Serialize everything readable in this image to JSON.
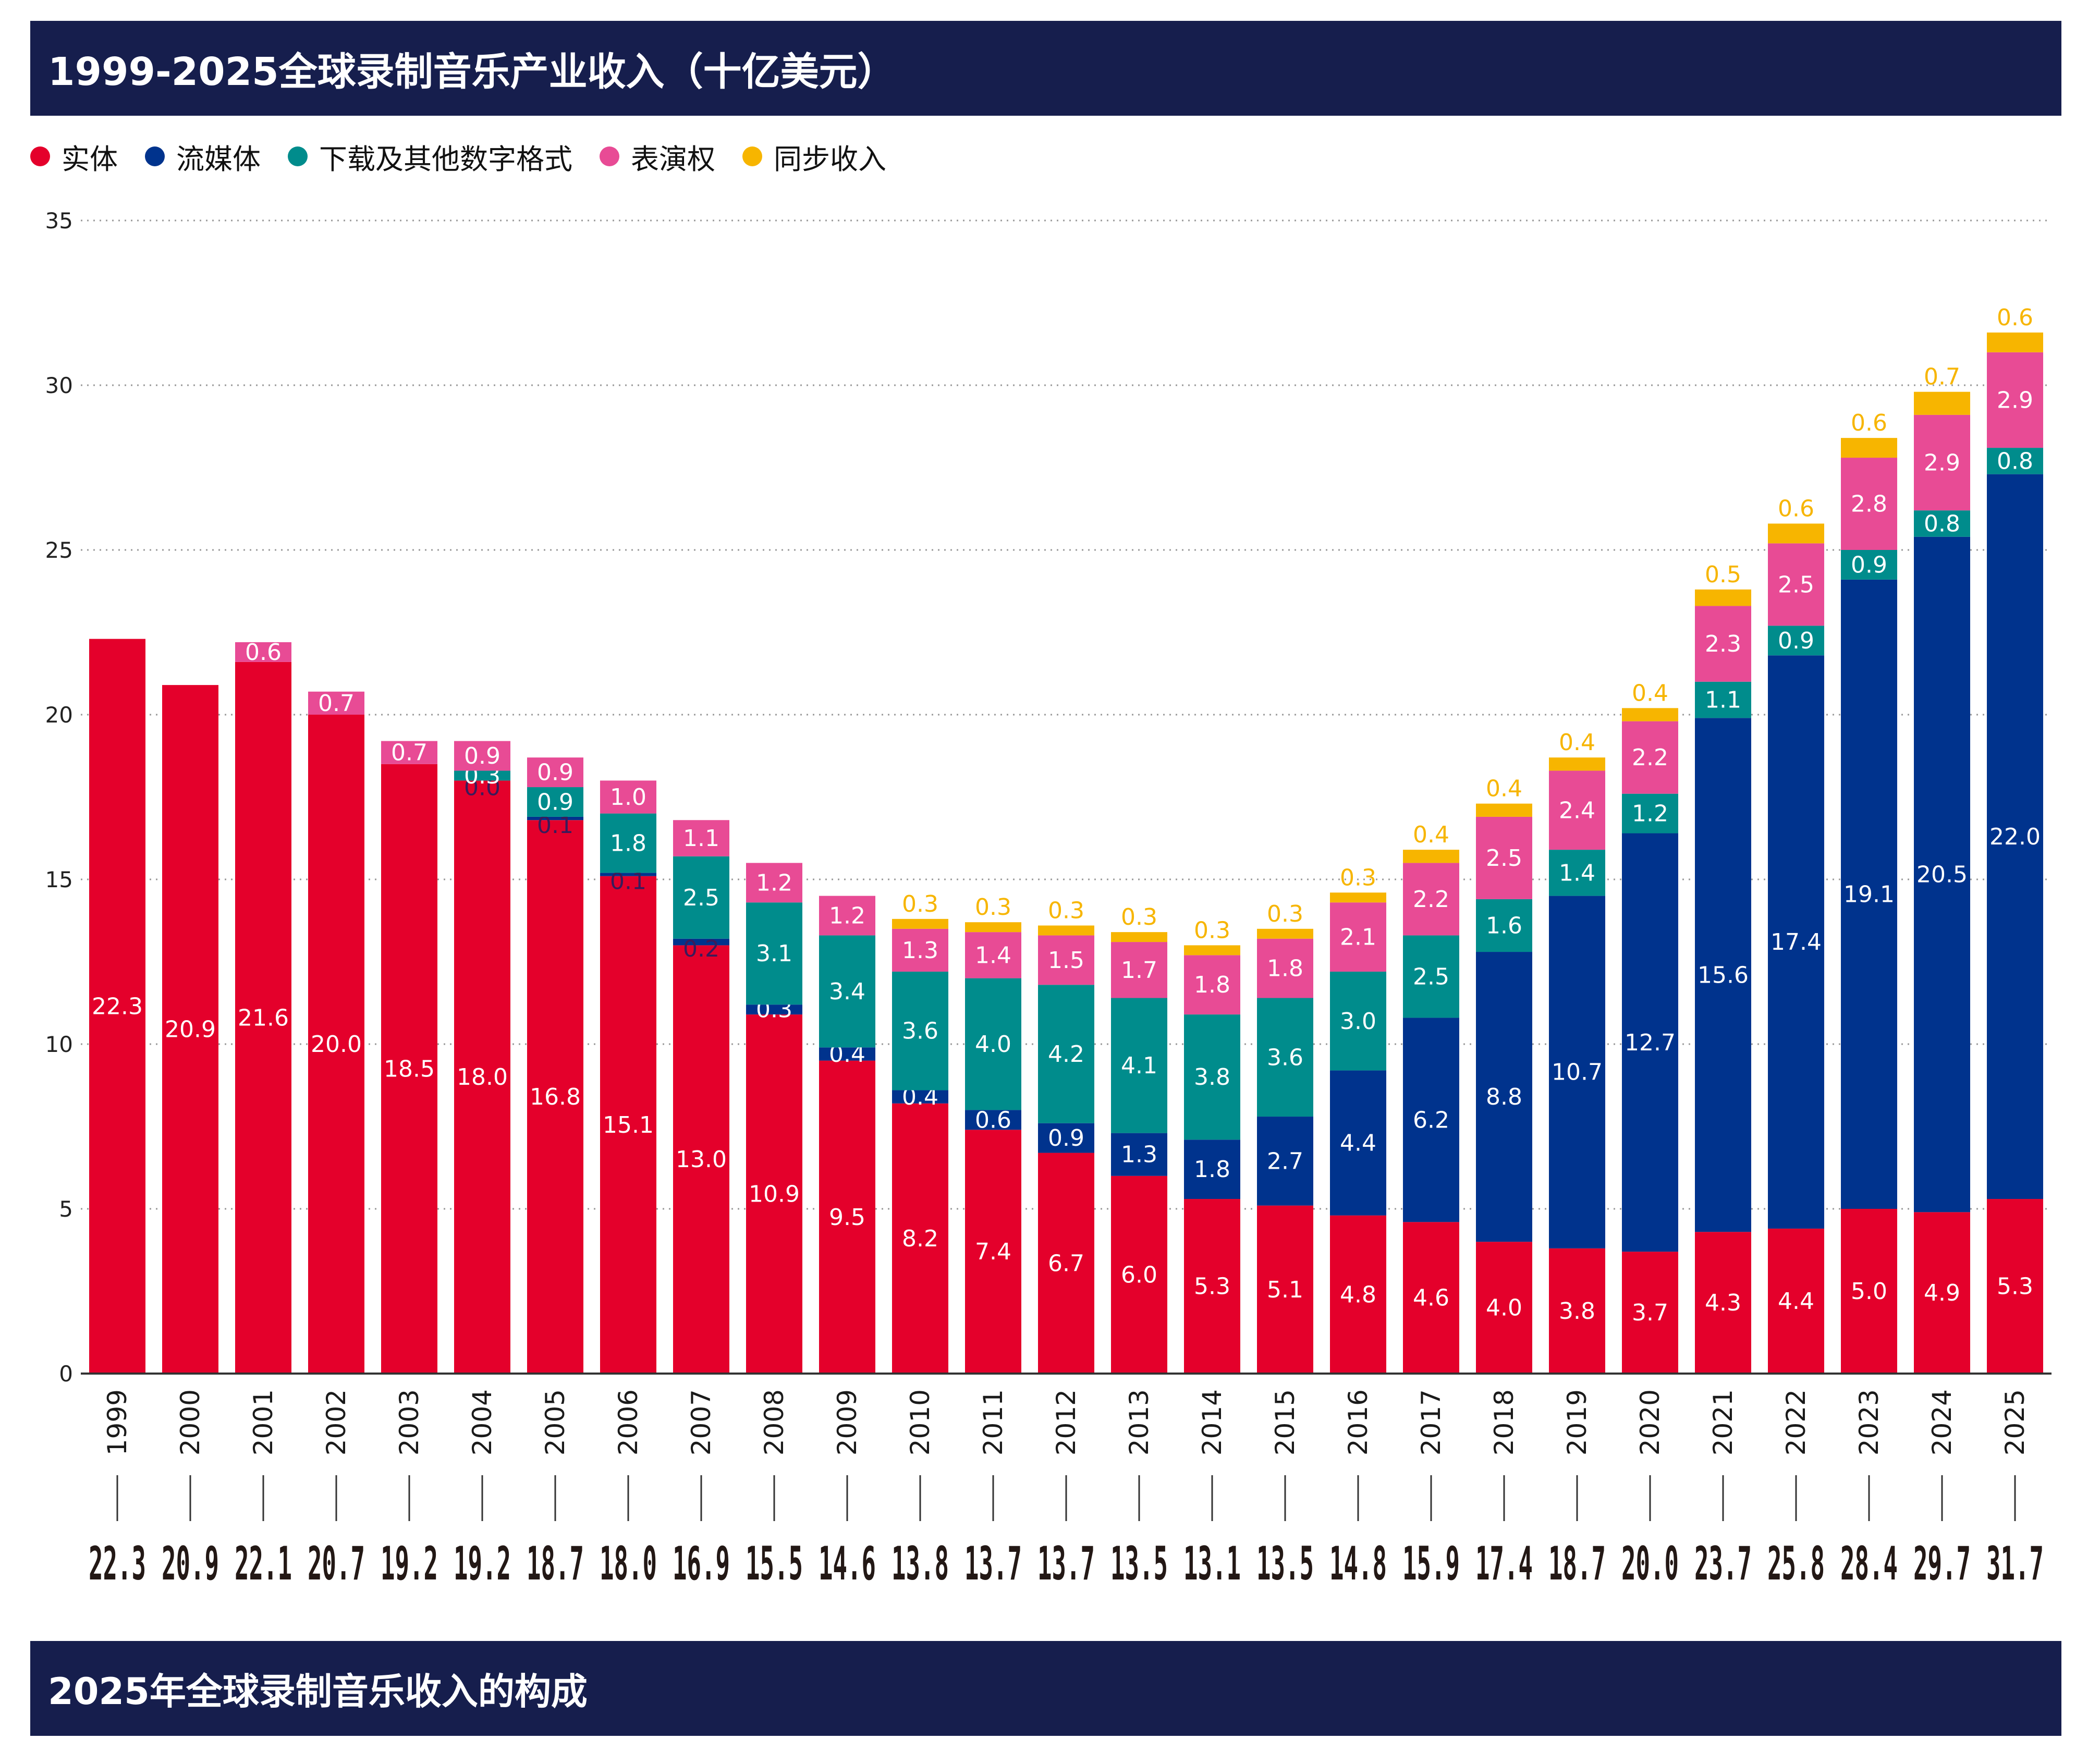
{
  "title": "1999-2025全球录制音乐产业收入（十亿美元）",
  "bottom_title": "2025年全球录制音乐收入的构成",
  "legend": [
    {
      "label": "实体",
      "color": "#e4002b"
    },
    {
      "label": "流媒体",
      "color": "#00338d"
    },
    {
      "label": "下载及其他数字格式",
      "color": "#008c8c"
    },
    {
      "label": "表演权",
      "color": "#e84b95"
    },
    {
      "label": "同步收入",
      "color": "#f7b500"
    }
  ],
  "chart_data": {
    "type": "bar",
    "stacked": true,
    "title": "1999-2025全球录制音乐产业收入（十亿美元）",
    "ylim": [
      0,
      35
    ],
    "yticks": [
      "0",
      "5",
      "10",
      "15",
      "20",
      "25",
      "30",
      "35"
    ],
    "categories": [
      "1999",
      "2000",
      "2001",
      "2002",
      "2003",
      "2004",
      "2005",
      "2006",
      "2007",
      "2008",
      "2009",
      "2010",
      "2011",
      "2012",
      "2013",
      "2014",
      "2015",
      "2016",
      "2017",
      "2018",
      "2019",
      "2020",
      "2021",
      "2022",
      "2023",
      "2024",
      "2025"
    ],
    "series": [
      {
        "name": "实体",
        "color": "#e4002b",
        "label_color": "#ffffff",
        "values": [
          22.3,
          20.9,
          21.6,
          20.0,
          18.5,
          18.0,
          16.8,
          15.1,
          13.0,
          10.9,
          9.5,
          8.2,
          7.4,
          6.7,
          6.0,
          5.3,
          5.1,
          4.8,
          4.6,
          4.0,
          3.8,
          3.7,
          4.3,
          4.4,
          5.0,
          4.9,
          5.3
        ],
        "labels": [
          "22.3",
          "20.9",
          "21.6",
          "20.0",
          "18.5",
          "18.0",
          "16.8",
          "15.1",
          "13.0",
          "10.9",
          "9.5",
          "8.2",
          "7.4",
          "6.7",
          "6.0",
          "5.3",
          "5.1",
          "4.8",
          "4.6",
          "4.0",
          "3.8",
          "3.7",
          "4.3",
          "4.4",
          "5.0",
          "4.9",
          "5.3"
        ]
      },
      {
        "name": "流媒体",
        "color": "#00338d",
        "label_color": "#ffffff",
        "values": [
          null,
          null,
          null,
          null,
          null,
          0.0,
          0.1,
          0.1,
          0.2,
          0.3,
          0.4,
          0.4,
          0.6,
          0.9,
          1.3,
          1.8,
          2.7,
          4.4,
          6.2,
          8.8,
          10.7,
          12.7,
          15.6,
          17.4,
          19.1,
          20.5,
          22.0
        ],
        "labels": [
          null,
          null,
          null,
          null,
          null,
          "0.0",
          "0.1",
          "0.1",
          "0.2",
          "0.3",
          "0.4",
          "0.4",
          "0.6",
          "0.9",
          "1.3",
          "1.8",
          "2.7",
          "4.4",
          "6.2",
          "8.8",
          "10.7",
          "12.7",
          "15.6",
          "17.4",
          "19.1",
          "20.5",
          "22.0"
        ]
      },
      {
        "name": "下载及其他数字格式",
        "color": "#008c8c",
        "label_color": "#ffffff",
        "values": [
          null,
          null,
          null,
          null,
          null,
          0.3,
          0.9,
          1.8,
          2.5,
          3.1,
          3.4,
          3.6,
          4.0,
          4.2,
          4.1,
          3.8,
          3.6,
          3.0,
          2.5,
          1.6,
          1.4,
          1.2,
          1.1,
          0.9,
          0.9,
          0.8,
          0.8
        ],
        "labels": [
          null,
          null,
          null,
          null,
          null,
          "0.3",
          "0.9",
          "1.8",
          "2.5",
          "3.1",
          "3.4",
          "3.6",
          "4.0",
          "4.2",
          "4.1",
          "3.8",
          "3.6",
          "3.0",
          "2.5",
          "1.6",
          "1.4",
          "1.2",
          "1.1",
          "0.9",
          "0.9",
          "0.8",
          "0.8"
        ]
      },
      {
        "name": "表演权",
        "color": "#e84b95",
        "label_color": "#ffffff",
        "values": [
          null,
          null,
          0.6,
          0.7,
          0.7,
          0.9,
          0.9,
          1.0,
          1.1,
          1.2,
          1.2,
          1.3,
          1.4,
          1.5,
          1.7,
          1.8,
          1.8,
          2.1,
          2.2,
          2.5,
          2.4,
          2.2,
          2.3,
          2.5,
          2.8,
          2.9,
          2.9
        ],
        "labels": [
          null,
          null,
          "0.6",
          "0.7",
          "0.7",
          "0.9",
          "0.9",
          "1.0",
          "1.1",
          "1.2",
          "1.2",
          "1.3",
          "1.4",
          "1.5",
          "1.7",
          "1.8",
          "1.8",
          "2.1",
          "2.2",
          "2.5",
          "2.4",
          "2.2",
          "2.3",
          "2.5",
          "2.8",
          "2.9",
          "2.9"
        ]
      },
      {
        "name": "同步收入",
        "color": "#f7b500",
        "label_color": "#f7b500",
        "values": [
          null,
          null,
          null,
          null,
          null,
          null,
          null,
          null,
          null,
          null,
          null,
          0.3,
          0.3,
          0.3,
          0.3,
          0.3,
          0.3,
          0.3,
          0.4,
          0.4,
          0.4,
          0.4,
          0.5,
          0.6,
          0.6,
          0.7,
          0.6
        ],
        "labels": [
          null,
          null,
          null,
          null,
          null,
          null,
          null,
          null,
          null,
          null,
          null,
          "0.3",
          "0.3",
          "0.3",
          "0.3",
          "0.3",
          "0.3",
          "0.3",
          "0.4",
          "0.4",
          "0.4",
          "0.4",
          "0.5",
          "0.6",
          "0.6",
          "0.7",
          "0.6"
        ]
      }
    ],
    "totals": [
      "22.3",
      "20.9",
      "22.1",
      "20.7",
      "19.2",
      "19.2",
      "18.7",
      "18.0",
      "16.9",
      "15.5",
      "14.6",
      "13.8",
      "13.7",
      "13.7",
      "13.5",
      "13.1",
      "13.5",
      "14.8",
      "15.9",
      "17.4",
      "18.7",
      "20.0",
      "23.7",
      "25.8",
      "28.4",
      "29.7",
      "31.7"
    ],
    "grid": true,
    "legend_position": "top-left"
  }
}
